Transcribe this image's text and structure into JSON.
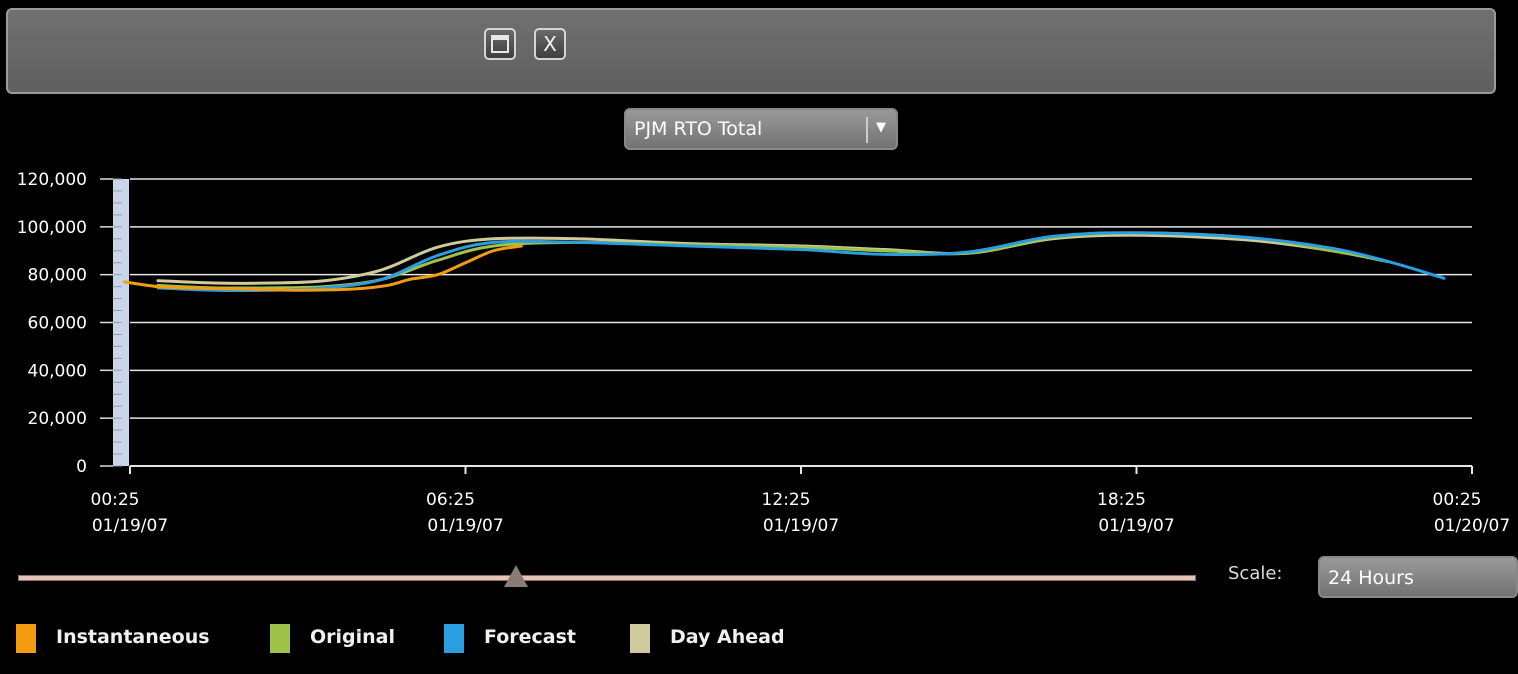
{
  "window": {
    "maximize_icon": "maximize-icon",
    "close_label": "X"
  },
  "region_select": {
    "value": "PJM RTO Total",
    "arrow_icon": "dropdown-arrow-icon"
  },
  "scale": {
    "label": "Scale:",
    "value": "24 Hours"
  },
  "legend": [
    {
      "label": "Instantaneous",
      "color": "#f39c12"
    },
    {
      "label": "Original",
      "color": "#9ec24a"
    },
    {
      "label": "Forecast",
      "color": "#2a9fe0"
    },
    {
      "label": "Day Ahead",
      "color": "#cfcb9c"
    }
  ],
  "chart_data": {
    "type": "line",
    "ylim": [
      0,
      120000
    ],
    "y_ticks": [
      "120,000",
      "100,000",
      "80,000",
      "60,000",
      "40,000",
      "20,000",
      "0"
    ],
    "y_tick_values": [
      120000,
      100000,
      80000,
      60000,
      40000,
      20000,
      0
    ],
    "x_range_hours": [
      0,
      24
    ],
    "x_ticks": [
      {
        "time": "00:25",
        "date": "01/19/07",
        "hours": 0
      },
      {
        "time": "06:25",
        "date": "01/19/07",
        "hours": 6
      },
      {
        "time": "12:25",
        "date": "01/19/07",
        "hours": 12
      },
      {
        "time": "18:25",
        "date": "01/19/07",
        "hours": 18
      },
      {
        "time": "00:25",
        "date": "01/20/07",
        "hours": 24
      }
    ],
    "grid": true,
    "series": [
      {
        "name": "Instantaneous",
        "color": "#f39c12",
        "x": [
          -0.1,
          0.5,
          1.0,
          2.0,
          3.0,
          4.0,
          4.6,
          5.0,
          5.5,
          6.0,
          6.5,
          7.0
        ],
        "y": [
          77000,
          75000,
          74500,
          74000,
          73500,
          74000,
          75500,
          78000,
          80000,
          85000,
          90000,
          92000
        ]
      },
      {
        "name": "Original",
        "color": "#9ec24a",
        "x": [
          0.5,
          1.5,
          2.5,
          3.5,
          4.5,
          5.5,
          6.5,
          8,
          10,
          12,
          13.5,
          15,
          16.5,
          18,
          20,
          21.5,
          22.5
        ],
        "y": [
          75500,
          74500,
          74500,
          75000,
          78000,
          86000,
          92000,
          93500,
          92500,
          91500,
          90000,
          89000,
          95500,
          97500,
          95500,
          90000,
          85500
        ]
      },
      {
        "name": "Forecast",
        "color": "#2a9fe0",
        "x": [
          0.5,
          1.5,
          2.5,
          3.5,
          4.5,
          5.5,
          6.5,
          8,
          10,
          12,
          13.5,
          15,
          16.5,
          18,
          20,
          21.5,
          22.5,
          23.5
        ],
        "y": [
          74500,
          73500,
          73500,
          74500,
          78000,
          88000,
          93500,
          93500,
          92000,
          90500,
          88500,
          89500,
          96000,
          97500,
          95500,
          91000,
          85500,
          78500
        ]
      },
      {
        "name": "Day Ahead",
        "color": "#cfcb9c",
        "x": [
          0.5,
          1.5,
          2.5,
          3.5,
          4.5,
          5.5,
          6.5,
          8,
          10,
          12,
          13.5,
          15,
          16.5,
          18,
          20,
          21.5,
          22.5
        ],
        "y": [
          77500,
          76500,
          76500,
          77500,
          82000,
          91500,
          95000,
          95000,
          93000,
          92000,
          90500,
          89000,
          95000,
          96500,
          94500,
          90000,
          85500
        ]
      }
    ]
  }
}
